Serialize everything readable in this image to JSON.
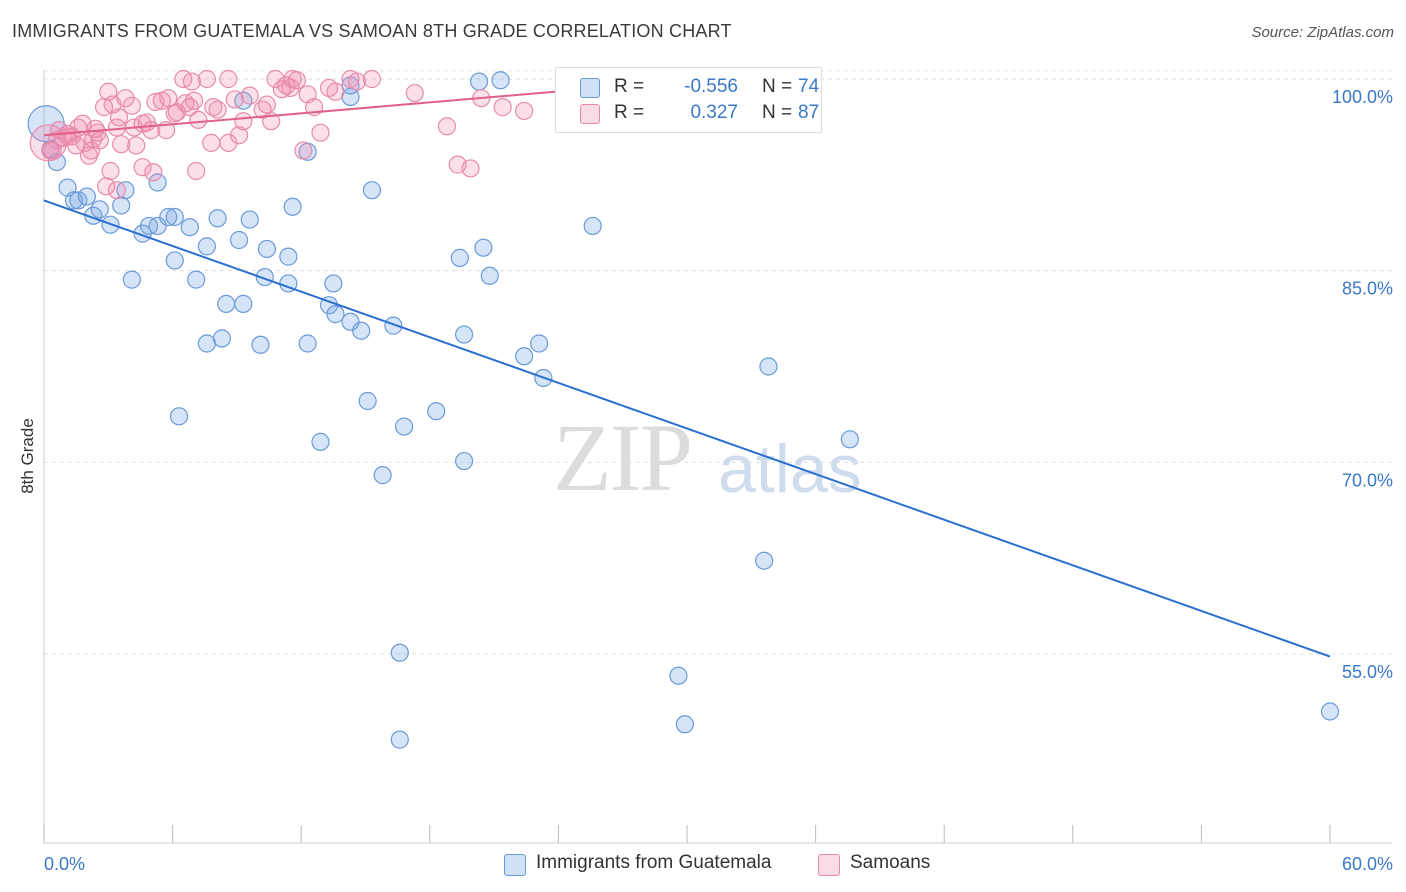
{
  "header": {
    "title": "IMMIGRANTS FROM GUATEMALA VS SAMOAN 8TH GRADE CORRELATION CHART",
    "source": "Source: ZipAtlas.com"
  },
  "watermark": {
    "zip": "ZIP",
    "atlas": "atlas"
  },
  "colors": {
    "blue_fill": "rgba(120,165,230,0.30)",
    "blue_stroke": "#6a9ad8",
    "blue_line": "#2a6fd1",
    "pink_fill": "rgba(240,140,175,0.28)",
    "pink_stroke": "#e88aac",
    "pink_line": "#e0608a",
    "tick_label": "#3a78c8",
    "grid": "#dddddd"
  },
  "legend": {
    "rows": [
      {
        "r_label": "R =",
        "r_value": "-0.556",
        "n_label": "N =",
        "n_value": "74",
        "color": "blue"
      },
      {
        "r_label": "R =",
        "r_value": "0.327",
        "n_label": "N =",
        "n_value": "87",
        "color": "pink"
      }
    ]
  },
  "bottom_legend": [
    {
      "label": "Immigrants from Guatemala",
      "color": "blue"
    },
    {
      "label": "Samoans",
      "color": "pink"
    }
  ],
  "chart_data": {
    "type": "scatter",
    "title": "IMMIGRANTS FROM GUATEMALA VS SAMOAN 8TH GRADE CORRELATION CHART",
    "xlabel": "",
    "ylabel": "8th Grade",
    "xlim": [
      0,
      60
    ],
    "ylim": [
      40,
      100
    ],
    "x_tick_labels": [
      "0.0%",
      "60.0%"
    ],
    "y_ticks": [
      55,
      70,
      85,
      100
    ],
    "y_tick_labels": [
      "55.0%",
      "70.0%",
      "85.0%",
      "100.0%"
    ],
    "grid": true,
    "series": [
      {
        "name": "Immigrants from Guatemala",
        "R": -0.556,
        "N": 74,
        "trend": {
          "x": [
            0,
            60
          ],
          "y": [
            90.5,
            54.8
          ]
        },
        "points": [
          [
            0.1,
            96.5
          ],
          [
            0.3,
            94.5
          ],
          [
            0.6,
            93.5
          ],
          [
            1.1,
            91.5
          ],
          [
            1.4,
            90.5
          ],
          [
            1.6,
            90.5
          ],
          [
            2.0,
            90.8
          ],
          [
            2.3,
            89.3
          ],
          [
            2.6,
            89.8
          ],
          [
            3.1,
            88.6
          ],
          [
            3.6,
            90.1
          ],
          [
            3.8,
            91.3
          ],
          [
            4.6,
            87.9
          ],
          [
            4.9,
            88.5
          ],
          [
            5.3,
            88.5
          ],
          [
            5.3,
            91.9
          ],
          [
            5.8,
            89.2
          ],
          [
            6.1,
            89.2
          ],
          [
            6.8,
            88.4
          ],
          [
            7.6,
            86.9
          ],
          [
            8.1,
            89.1
          ],
          [
            9.1,
            87.4
          ],
          [
            9.6,
            89.0
          ],
          [
            10.4,
            86.7
          ],
          [
            11.4,
            86.1
          ],
          [
            11.6,
            90.0
          ],
          [
            8.5,
            82.4
          ],
          [
            4.1,
            84.3
          ],
          [
            6.1,
            85.8
          ],
          [
            7.1,
            84.3
          ],
          [
            9.3,
            82.4
          ],
          [
            10.3,
            84.5
          ],
          [
            11.4,
            84.0
          ],
          [
            13.3,
            82.3
          ],
          [
            13.5,
            84.0
          ],
          [
            13.6,
            81.6
          ],
          [
            14.3,
            81.0
          ],
          [
            14.8,
            80.3
          ],
          [
            15.3,
            91.3
          ],
          [
            12.3,
            94.3
          ],
          [
            14.3,
            98.6
          ],
          [
            16.3,
            80.7
          ],
          [
            7.6,
            79.3
          ],
          [
            8.3,
            79.7
          ],
          [
            10.1,
            79.2
          ],
          [
            12.3,
            79.3
          ],
          [
            15.1,
            74.8
          ],
          [
            16.8,
            72.8
          ],
          [
            18.3,
            74.0
          ],
          [
            19.6,
            80.0
          ],
          [
            19.4,
            86.0
          ],
          [
            20.5,
            86.8
          ],
          [
            20.8,
            84.6
          ],
          [
            22.4,
            78.3
          ],
          [
            23.3,
            76.6
          ],
          [
            23.1,
            79.3
          ],
          [
            25.6,
            88.5
          ],
          [
            12.9,
            71.6
          ],
          [
            15.8,
            69.0
          ],
          [
            19.6,
            70.1
          ],
          [
            6.3,
            73.6
          ],
          [
            16.6,
            55.1
          ],
          [
            16.6,
            48.3
          ],
          [
            29.6,
            53.3
          ],
          [
            29.9,
            49.5
          ],
          [
            33.8,
            77.5
          ],
          [
            33.6,
            62.3
          ],
          [
            37.6,
            71.8
          ],
          [
            60.0,
            50.5
          ],
          [
            20.3,
            99.8
          ],
          [
            21.3,
            99.9
          ],
          [
            35.3,
            99.8
          ],
          [
            14.3,
            99.5
          ],
          [
            9.3,
            98.3
          ]
        ]
      },
      {
        "name": "Samoans",
        "R": 0.327,
        "N": 87,
        "trend": {
          "x": [
            0,
            28
          ],
          "y": [
            95.6,
            99.6
          ]
        },
        "points": [
          [
            0.2,
            95.0
          ],
          [
            0.4,
            94.4
          ],
          [
            0.6,
            95.2
          ],
          [
            0.7,
            96.0
          ],
          [
            0.9,
            95.4
          ],
          [
            1.1,
            95.5
          ],
          [
            1.3,
            95.5
          ],
          [
            1.6,
            96.2
          ],
          [
            1.9,
            95.0
          ],
          [
            2.2,
            94.4
          ],
          [
            2.3,
            95.3
          ],
          [
            2.5,
            95.8
          ],
          [
            2.6,
            95.2
          ],
          [
            2.8,
            97.8
          ],
          [
            3.0,
            99.0
          ],
          [
            3.2,
            98.0
          ],
          [
            3.4,
            96.2
          ],
          [
            3.5,
            97.0
          ],
          [
            3.8,
            98.5
          ],
          [
            4.1,
            97.9
          ],
          [
            4.2,
            96.2
          ],
          [
            4.3,
            94.8
          ],
          [
            4.6,
            96.5
          ],
          [
            4.8,
            96.6
          ],
          [
            5.0,
            96.0
          ],
          [
            5.2,
            98.2
          ],
          [
            5.5,
            98.3
          ],
          [
            5.8,
            98.5
          ],
          [
            6.1,
            97.3
          ],
          [
            6.2,
            97.4
          ],
          [
            6.5,
            100.0
          ],
          [
            6.6,
            98.1
          ],
          [
            6.8,
            97.8
          ],
          [
            7.0,
            98.3
          ],
          [
            7.2,
            96.8
          ],
          [
            7.6,
            100.0
          ],
          [
            7.9,
            97.8
          ],
          [
            8.1,
            97.6
          ],
          [
            8.6,
            100.0
          ],
          [
            8.9,
            98.4
          ],
          [
            9.1,
            95.6
          ],
          [
            9.3,
            96.7
          ],
          [
            9.6,
            98.7
          ],
          [
            10.2,
            97.6
          ],
          [
            10.6,
            96.7
          ],
          [
            10.8,
            100.0
          ],
          [
            11.1,
            99.2
          ],
          [
            11.5,
            99.3
          ],
          [
            12.3,
            98.8
          ],
          [
            12.6,
            97.8
          ],
          [
            12.9,
            95.8
          ],
          [
            13.3,
            99.3
          ],
          [
            13.6,
            99.0
          ],
          [
            14.3,
            100.0
          ],
          [
            14.6,
            99.8
          ],
          [
            15.3,
            100.0
          ],
          [
            17.3,
            98.9
          ],
          [
            18.8,
            96.3
          ],
          [
            19.3,
            93.3
          ],
          [
            19.9,
            93.0
          ],
          [
            20.4,
            98.5
          ],
          [
            21.4,
            97.8
          ],
          [
            22.4,
            97.5
          ],
          [
            25.3,
            98.8
          ],
          [
            27.6,
            100.0
          ],
          [
            11.3,
            99.5
          ],
          [
            11.8,
            99.9
          ],
          [
            2.9,
            91.6
          ],
          [
            3.4,
            91.3
          ],
          [
            4.6,
            93.1
          ],
          [
            5.1,
            92.7
          ],
          [
            5.7,
            96.0
          ],
          [
            7.1,
            92.8
          ],
          [
            7.8,
            95.0
          ],
          [
            8.6,
            95.0
          ],
          [
            1.1,
            95.7
          ],
          [
            1.8,
            96.5
          ],
          [
            3.1,
            92.8
          ],
          [
            6.9,
            99.8
          ],
          [
            10.4,
            98.0
          ],
          [
            11.6,
            100.0
          ],
          [
            12.1,
            94.4
          ],
          [
            1.5,
            94.8
          ],
          [
            2.4,
            96.1
          ],
          [
            3.6,
            94.9
          ],
          [
            0.3,
            94.4
          ],
          [
            2.1,
            94.0
          ]
        ]
      }
    ]
  }
}
